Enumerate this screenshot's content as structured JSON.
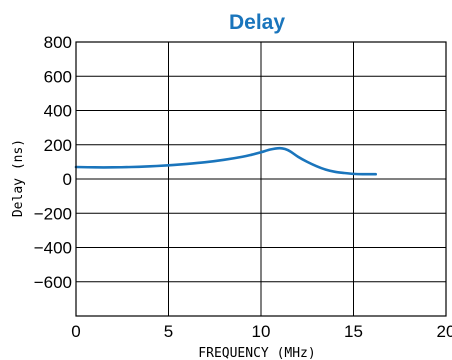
{
  "chart_data": {
    "type": "line",
    "title": "Delay",
    "xlabel": "FREQUENCY (MHz)",
    "ylabel": "Delay (ns)",
    "xlim": [
      0,
      20
    ],
    "ylim": [
      -800,
      800
    ],
    "x_ticks": [
      0,
      5,
      10,
      15,
      20
    ],
    "y_ticks": [
      800,
      600,
      400,
      200,
      0,
      -200,
      -400,
      -600
    ],
    "grid": true,
    "legend": "none",
    "series": [
      {
        "color": "#1a75bc",
        "x": [
          0,
          1,
          2,
          3,
          4,
          5,
          6,
          7,
          8,
          9,
          9.5,
          10,
          10.5,
          11,
          11.3,
          11.6,
          12,
          12.5,
          13,
          13.5,
          14,
          14.5,
          15,
          15.5,
          16.2
        ],
        "y": [
          70,
          68,
          68,
          70,
          74,
          80,
          88,
          98,
          112,
          130,
          142,
          156,
          172,
          180,
          175,
          160,
          130,
          100,
          75,
          55,
          42,
          35,
          30,
          28,
          28
        ]
      }
    ]
  },
  "colors": {
    "title": "#1a75bc",
    "grid": "#000000"
  }
}
